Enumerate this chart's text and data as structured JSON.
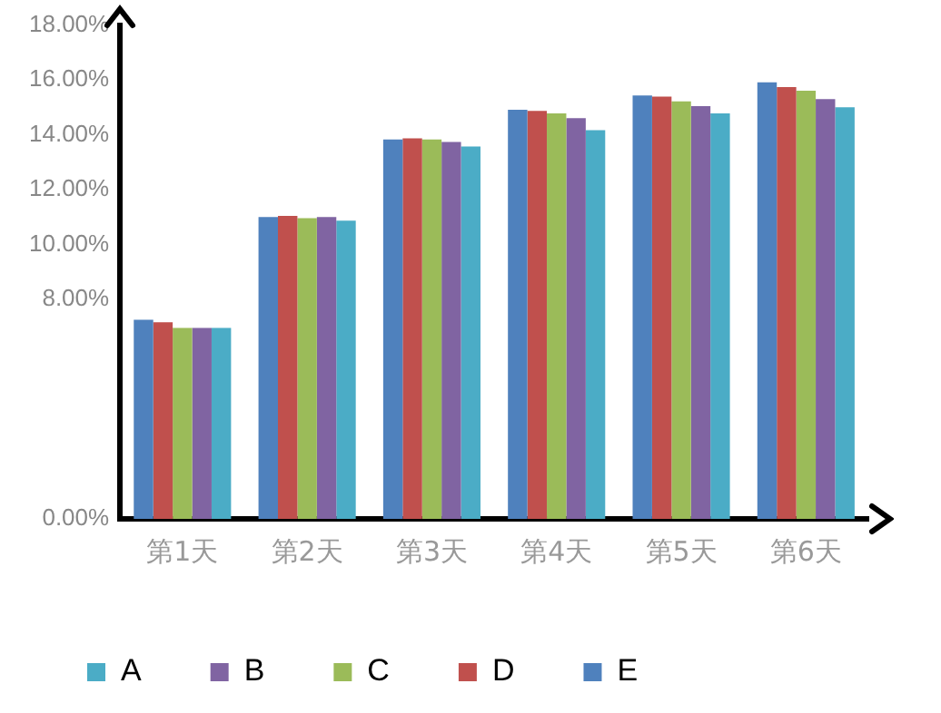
{
  "chart_data": {
    "type": "bar",
    "categories": [
      "第1天",
      "第2天",
      "第3天",
      "第4天",
      "第5天",
      "第6天"
    ],
    "series": [
      {
        "name": "E",
        "color": "#4f81bd",
        "values": [
          7.26,
          11.0,
          13.83,
          14.91,
          15.43,
          15.91
        ]
      },
      {
        "name": "D",
        "color": "#c0504d",
        "values": [
          7.17,
          11.04,
          13.87,
          14.87,
          15.39,
          15.74
        ]
      },
      {
        "name": "C",
        "color": "#9bbb59",
        "values": [
          6.96,
          10.96,
          13.83,
          14.78,
          15.22,
          15.61
        ]
      },
      {
        "name": "B",
        "color": "#8064a2",
        "values": [
          6.96,
          11.0,
          13.74,
          14.61,
          15.04,
          15.3
        ]
      },
      {
        "name": "A",
        "color": "#4bacc6",
        "values": [
          6.96,
          10.87,
          13.57,
          14.17,
          14.78,
          15.0
        ]
      }
    ],
    "ylim": [
      0,
      18
    ],
    "yticks": [
      {
        "value": 0,
        "label": "0.00%"
      },
      {
        "value": 8,
        "label": "8.00%"
      },
      {
        "value": 10,
        "label": "10.00%"
      },
      {
        "value": 12,
        "label": "12.00%"
      },
      {
        "value": 14,
        "label": "14.00%"
      },
      {
        "value": 16,
        "label": "16.00%"
      },
      {
        "value": 18,
        "label": "18.00%"
      }
    ],
    "grid": false,
    "legend": "bottom left"
  }
}
